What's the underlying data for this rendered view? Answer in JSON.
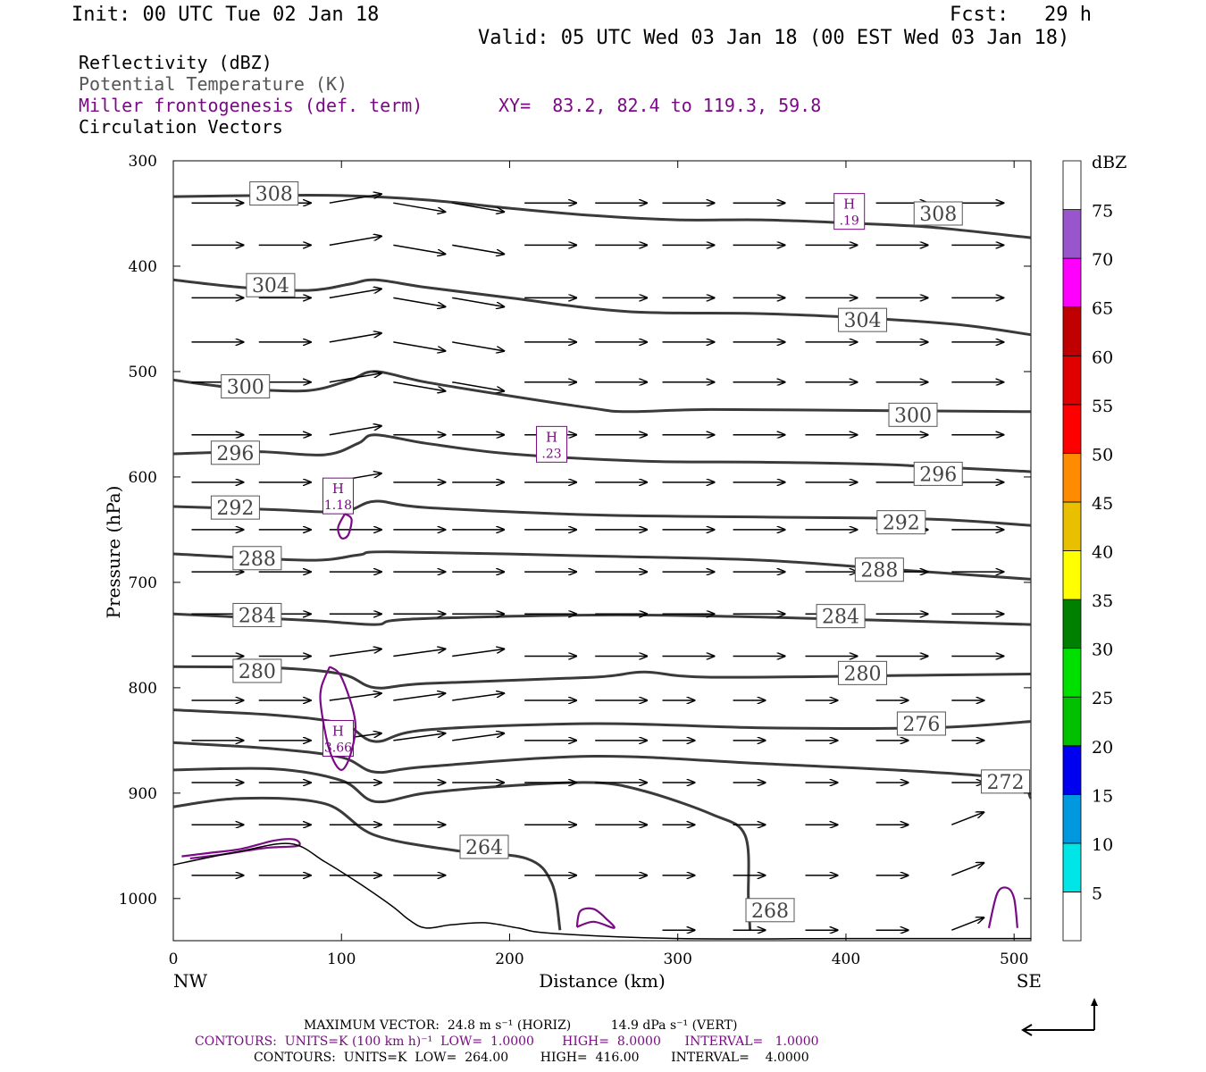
{
  "header": {
    "init": "Init: 00 UTC Tue 02 Jan 18",
    "fcst": "Fcst:   29 h",
    "valid": "Valid: 05 UTC Wed 03 Jan 18 (00 EST Wed 03 Jan 18)",
    "field1": "Reflectivity (dBZ)",
    "field2": "Potential Temperature (K)",
    "field3": "Miller frontogenesis (def. term)",
    "xy": "XY=  83.2, 82.4 to 119.3, 59.8",
    "field4": "Circulation Vectors"
  },
  "footer": {
    "max_vector": "MAXIMUM VECTOR:  24.8 m s⁻¹ (HORIZ)          14.9 dPa s⁻¹ (VERT)",
    "contours_purple": "CONTOURS:  UNITS=K (100 km h)⁻¹  LOW=  1.0000       HIGH=  8.0000      INTERVAL=   1.0000",
    "contours_black": "CONTOURS:  UNITS=K  LOW=  264.00        HIGH=  416.00        INTERVAL=    4.0000"
  },
  "colorbar": {
    "unit": "dBZ",
    "levels": [
      "5",
      "10",
      "15",
      "20",
      "25",
      "30",
      "35",
      "40",
      "45",
      "50",
      "55",
      "60",
      "65",
      "70",
      "75"
    ],
    "colors": [
      "#00e5e5",
      "#0099e0",
      "#0000f0",
      "#00c000",
      "#00e000",
      "#008000",
      "#ffff00",
      "#e8c000",
      "#ff8c00",
      "#ff0000",
      "#e00000",
      "#c00000",
      "#ff00ff",
      "#9955cc",
      "#ffffff"
    ]
  },
  "chart_data": {
    "type": "cross-section",
    "xlabel": "Distance (km)",
    "ylabel": "Pressure (hPa)",
    "xlim": [
      0,
      510
    ],
    "ylim": [
      1040,
      300
    ],
    "x_ticks": [
      "0",
      "100",
      "200",
      "300",
      "400",
      "500"
    ],
    "y_ticks": [
      "300",
      "400",
      "500",
      "600",
      "700",
      "800",
      "900",
      "1000"
    ],
    "left_end": "NW",
    "right_end": "SE",
    "theta_contours": [
      {
        "level": "308",
        "pts": [
          [
            0,
            334
          ],
          [
            50,
            333
          ],
          [
            100,
            333
          ],
          [
            150,
            337
          ],
          [
            200,
            345
          ],
          [
            250,
            352
          ],
          [
            300,
            356
          ],
          [
            350,
            356
          ],
          [
            400,
            359
          ],
          [
            450,
            363
          ],
          [
            510,
            373
          ]
        ],
        "labels": [
          [
            45,
            331
          ],
          [
            440,
            350
          ]
        ]
      },
      {
        "level": "304",
        "pts": [
          [
            0,
            413
          ],
          [
            40,
            420
          ],
          [
            80,
            423
          ],
          [
            105,
            417
          ],
          [
            120,
            413
          ],
          [
            150,
            420
          ],
          [
            200,
            430
          ],
          [
            270,
            443
          ],
          [
            350,
            445
          ],
          [
            420,
            450
          ],
          [
            470,
            456
          ],
          [
            510,
            465
          ]
        ],
        "labels": [
          [
            43,
            418
          ],
          [
            395,
            451
          ]
        ]
      },
      {
        "level": "300",
        "pts": [
          [
            0,
            508
          ],
          [
            40,
            516
          ],
          [
            80,
            518
          ],
          [
            105,
            508
          ],
          [
            120,
            500
          ],
          [
            150,
            510
          ],
          [
            200,
            523
          ],
          [
            250,
            535
          ],
          [
            270,
            538
          ],
          [
            320,
            536
          ],
          [
            420,
            537
          ],
          [
            510,
            538
          ]
        ],
        "labels": [
          [
            28,
            514
          ],
          [
            425,
            541
          ]
        ]
      },
      {
        "level": "296",
        "pts": [
          [
            0,
            578
          ],
          [
            50,
            576
          ],
          [
            90,
            579
          ],
          [
            110,
            568
          ],
          [
            120,
            560
          ],
          [
            150,
            568
          ],
          [
            200,
            578
          ],
          [
            280,
            585
          ],
          [
            350,
            586
          ],
          [
            420,
            588
          ],
          [
            510,
            595
          ]
        ],
        "labels": [
          [
            22,
            577
          ],
          [
            440,
            597
          ]
        ]
      },
      {
        "level": "292",
        "pts": [
          [
            0,
            628
          ],
          [
            60,
            631
          ],
          [
            100,
            633
          ],
          [
            120,
            623
          ],
          [
            150,
            629
          ],
          [
            250,
            636
          ],
          [
            350,
            638
          ],
          [
            450,
            640
          ],
          [
            510,
            646
          ]
        ],
        "labels": [
          [
            22,
            629
          ],
          [
            418,
            643
          ]
        ]
      },
      {
        "level": "288",
        "pts": [
          [
            0,
            673
          ],
          [
            80,
            679
          ],
          [
            110,
            674
          ],
          [
            130,
            671
          ],
          [
            250,
            675
          ],
          [
            350,
            679
          ],
          [
            430,
            688
          ],
          [
            510,
            697
          ]
        ],
        "labels": [
          [
            35,
            677
          ],
          [
            405,
            688
          ]
        ]
      },
      {
        "level": "284",
        "pts": [
          [
            0,
            730
          ],
          [
            80,
            736
          ],
          [
            120,
            740
          ],
          [
            140,
            735
          ],
          [
            250,
            731
          ],
          [
            350,
            733
          ],
          [
            510,
            740
          ]
        ],
        "labels": [
          [
            35,
            731
          ],
          [
            382,
            732
          ]
        ]
      },
      {
        "level": "280",
        "pts": [
          [
            0,
            780
          ],
          [
            60,
            781
          ],
          [
            100,
            787
          ],
          [
            120,
            800
          ],
          [
            150,
            796
          ],
          [
            250,
            790
          ],
          [
            280,
            785
          ],
          [
            320,
            790
          ],
          [
            450,
            788
          ],
          [
            510,
            787
          ]
        ],
        "labels": [
          [
            35,
            784
          ],
          [
            395,
            786
          ]
        ]
      },
      {
        "level": "276",
        "pts": [
          [
            0,
            821
          ],
          [
            60,
            826
          ],
          [
            100,
            834
          ],
          [
            120,
            851
          ],
          [
            150,
            840
          ],
          [
            250,
            834
          ],
          [
            350,
            838
          ],
          [
            450,
            838
          ],
          [
            510,
            832
          ]
        ],
        "labels": [
          [
            430,
            834
          ]
        ]
      },
      {
        "level": "272",
        "pts": [
          [
            0,
            852
          ],
          [
            60,
            858
          ],
          [
            100,
            866
          ],
          [
            120,
            880
          ],
          [
            150,
            875
          ],
          [
            250,
            865
          ],
          [
            350,
            872
          ],
          [
            450,
            880
          ],
          [
            500,
            888
          ],
          [
            510,
            905
          ]
        ],
        "labels": [
          [
            480,
            889
          ]
        ]
      },
      {
        "level": "268",
        "pts": [
          [
            0,
            878
          ],
          [
            60,
            877
          ],
          [
            100,
            888
          ],
          [
            120,
            908
          ],
          [
            150,
            900
          ],
          [
            200,
            893
          ],
          [
            250,
            890
          ],
          [
            280,
            898
          ],
          [
            320,
            920
          ],
          [
            340,
            940
          ],
          [
            342,
            1000
          ],
          [
            343,
            1030
          ]
        ],
        "labels": [
          [
            340,
            1011
          ]
        ]
      },
      {
        "level": "264",
        "pts": [
          [
            0,
            913
          ],
          [
            40,
            905
          ],
          [
            90,
            910
          ],
          [
            120,
            940
          ],
          [
            170,
            955
          ],
          [
            210,
            962
          ],
          [
            225,
            985
          ],
          [
            230,
            1030
          ]
        ],
        "labels": [
          [
            170,
            951
          ]
        ]
      }
    ],
    "frontogenesis_labels": [
      {
        "label": "H",
        "value": ".19",
        "x": 402,
        "p": 348
      },
      {
        "label": "H",
        "value": ".23",
        "x": 225,
        "p": 569
      },
      {
        "label": "H",
        "value": "1.18",
        "x": 98,
        "p": 618
      },
      {
        "label": "H",
        "value": "3.66",
        "x": 98,
        "p": 848
      }
    ],
    "terrain_surface_hpa": [
      [
        0,
        968
      ],
      [
        40,
        955
      ],
      [
        70,
        948
      ],
      [
        90,
        965
      ],
      [
        110,
        985
      ],
      [
        130,
        1007
      ],
      [
        140,
        1020
      ],
      [
        150,
        1028
      ],
      [
        165,
        1025
      ],
      [
        185,
        1023
      ],
      [
        205,
        1028
      ],
      [
        225,
        1033
      ],
      [
        300,
        1038
      ],
      [
        400,
        1038
      ],
      [
        510,
        1038
      ]
    ]
  }
}
